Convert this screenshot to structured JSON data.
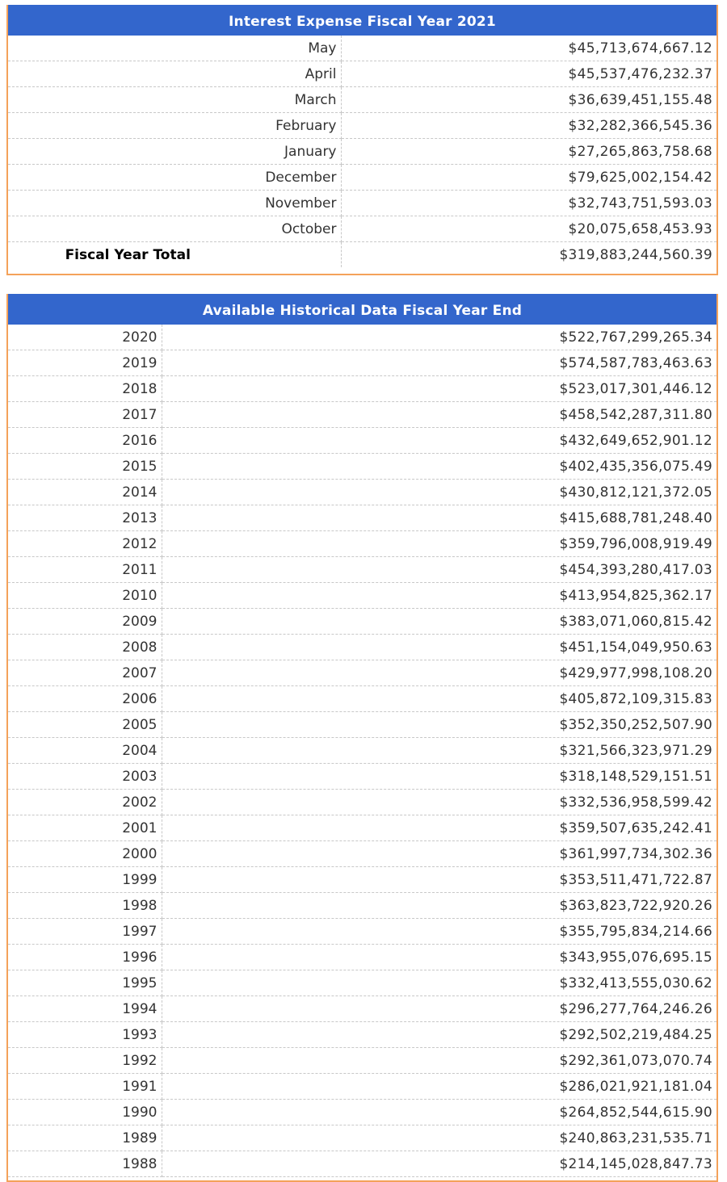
{
  "current_fy": {
    "title": "Interest Expense Fiscal Year 2021",
    "rows": [
      {
        "label": "May",
        "amount": "$45,713,674,667.12"
      },
      {
        "label": "April",
        "amount": "$45,537,476,232.37"
      },
      {
        "label": "March",
        "amount": "$36,639,451,155.48"
      },
      {
        "label": "February",
        "amount": "$32,282,366,545.36"
      },
      {
        "label": "January",
        "amount": "$27,265,863,758.68"
      },
      {
        "label": "December",
        "amount": "$79,625,002,154.42"
      },
      {
        "label": "November",
        "amount": "$32,743,751,593.03"
      },
      {
        "label": "October",
        "amount": "$20,075,658,453.93"
      }
    ],
    "total_label": "Fiscal Year Total",
    "total_amount": "$319,883,244,560.39"
  },
  "historical": {
    "title": "Available Historical Data Fiscal Year End",
    "rows": [
      {
        "year": "2020",
        "amount": "$522,767,299,265.34"
      },
      {
        "year": "2019",
        "amount": "$574,587,783,463.63"
      },
      {
        "year": "2018",
        "amount": "$523,017,301,446.12"
      },
      {
        "year": "2017",
        "amount": "$458,542,287,311.80"
      },
      {
        "year": "2016",
        "amount": "$432,649,652,901.12"
      },
      {
        "year": "2015",
        "amount": "$402,435,356,075.49"
      },
      {
        "year": "2014",
        "amount": "$430,812,121,372.05"
      },
      {
        "year": "2013",
        "amount": "$415,688,781,248.40"
      },
      {
        "year": "2012",
        "amount": "$359,796,008,919.49"
      },
      {
        "year": "2011",
        "amount": "$454,393,280,417.03"
      },
      {
        "year": "2010",
        "amount": "$413,954,825,362.17"
      },
      {
        "year": "2009",
        "amount": "$383,071,060,815.42"
      },
      {
        "year": "2008",
        "amount": "$451,154,049,950.63"
      },
      {
        "year": "2007",
        "amount": "$429,977,998,108.20"
      },
      {
        "year": "2006",
        "amount": "$405,872,109,315.83"
      },
      {
        "year": "2005",
        "amount": "$352,350,252,507.90"
      },
      {
        "year": "2004",
        "amount": "$321,566,323,971.29"
      },
      {
        "year": "2003",
        "amount": "$318,148,529,151.51"
      },
      {
        "year": "2002",
        "amount": "$332,536,958,599.42"
      },
      {
        "year": "2001",
        "amount": "$359,507,635,242.41"
      },
      {
        "year": "2000",
        "amount": "$361,997,734,302.36"
      },
      {
        "year": "1999",
        "amount": "$353,511,471,722.87"
      },
      {
        "year": "1998",
        "amount": "$363,823,722,920.26"
      },
      {
        "year": "1997",
        "amount": "$355,795,834,214.66"
      },
      {
        "year": "1996",
        "amount": "$343,955,076,695.15"
      },
      {
        "year": "1995",
        "amount": "$332,413,555,030.62"
      },
      {
        "year": "1994",
        "amount": "$296,277,764,246.26"
      },
      {
        "year": "1993",
        "amount": "$292,502,219,484.25"
      },
      {
        "year": "1992",
        "amount": "$292,361,073,070.74"
      },
      {
        "year": "1991",
        "amount": "$286,021,921,181.04"
      },
      {
        "year": "1990",
        "amount": "$264,852,544,615.90"
      },
      {
        "year": "1989",
        "amount": "$240,863,231,535.71"
      },
      {
        "year": "1988",
        "amount": "$214,145,028,847.73"
      }
    ]
  },
  "colors": {
    "header_bg": "#3366cc",
    "header_text": "#ffffff",
    "panel_border": "#f4a25a",
    "row_divider": "#c8c8c8"
  }
}
